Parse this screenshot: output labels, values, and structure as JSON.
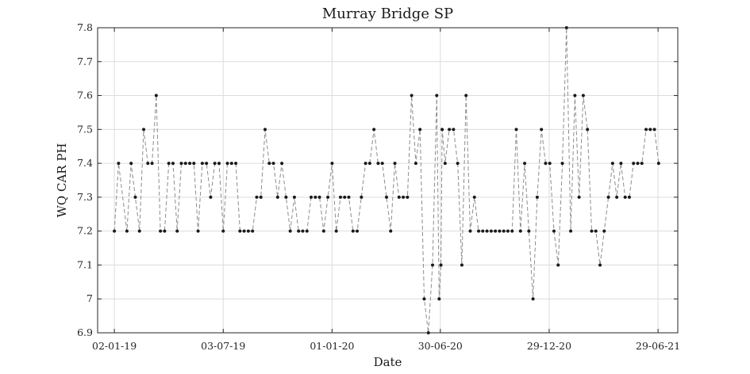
{
  "chart_data": {
    "type": "line",
    "title": "Murray Bridge SP",
    "xlabel": "Date",
    "ylabel": "WQ CAR PH",
    "ylim": [
      6.9,
      7.8
    ],
    "yticks": [
      6.9,
      7.0,
      7.1,
      7.2,
      7.3,
      7.4,
      7.5,
      7.6,
      7.7,
      7.8
    ],
    "ytick_labels": [
      "6.9",
      "7",
      "7.1",
      "7.2",
      "7.3",
      "7.4",
      "7.5",
      "7.6",
      "7.7",
      "7.8"
    ],
    "xlim": [
      "2018-12-05",
      "2021-08-01"
    ],
    "xticks": [
      "2019-01-02",
      "2019-07-03",
      "2020-01-01",
      "2020-06-30",
      "2020-12-29",
      "2021-06-29"
    ],
    "xtick_labels": [
      "02-01-19",
      "03-07-19",
      "01-01-20",
      "30-06-20",
      "29-12-20",
      "29-06-21"
    ],
    "grid": true,
    "line_style": "dashed",
    "line_color": "#8c8c8c",
    "marker_color": "#1a1a1a",
    "series": [
      {
        "x": [
          "2019-01-02",
          "2019-01-09",
          "2019-01-23",
          "2019-01-30",
          "2019-02-06",
          "2019-02-13",
          "2019-02-20",
          "2019-02-27",
          "2019-03-06",
          "2019-03-13",
          "2019-03-20",
          "2019-03-27",
          "2019-04-03",
          "2019-04-10",
          "2019-04-17",
          "2019-04-24",
          "2019-05-01",
          "2019-05-08",
          "2019-05-15",
          "2019-05-22",
          "2019-05-29",
          "2019-06-05",
          "2019-06-12",
          "2019-06-19",
          "2019-06-26",
          "2019-07-03",
          "2019-07-10",
          "2019-07-17",
          "2019-07-24",
          "2019-07-31",
          "2019-08-07",
          "2019-08-14",
          "2019-08-21",
          "2019-08-28",
          "2019-09-04",
          "2019-09-11",
          "2019-09-18",
          "2019-09-25",
          "2019-10-02",
          "2019-10-09",
          "2019-10-16",
          "2019-10-23",
          "2019-10-30",
          "2019-11-06",
          "2019-11-13",
          "2019-11-20",
          "2019-11-27",
          "2019-12-04",
          "2019-12-11",
          "2019-12-18",
          "2019-12-25",
          "2020-01-01",
          "2020-01-08",
          "2020-01-15",
          "2020-01-22",
          "2020-01-29",
          "2020-02-05",
          "2020-02-12",
          "2020-02-19",
          "2020-02-26",
          "2020-03-04",
          "2020-03-11",
          "2020-03-18",
          "2020-03-25",
          "2020-04-01",
          "2020-04-08",
          "2020-04-15",
          "2020-04-22",
          "2020-04-29",
          "2020-05-06",
          "2020-05-13",
          "2020-05-20",
          "2020-05-27",
          "2020-06-03",
          "2020-06-10",
          "2020-06-17",
          "2020-06-24",
          "2020-06-28",
          "2020-07-01",
          "2020-07-03",
          "2020-07-08",
          "2020-07-15",
          "2020-07-22",
          "2020-07-29",
          "2020-08-05",
          "2020-08-12",
          "2020-08-19",
          "2020-08-26",
          "2020-09-02",
          "2020-09-09",
          "2020-09-16",
          "2020-09-23",
          "2020-09-30",
          "2020-10-07",
          "2020-10-14",
          "2020-10-21",
          "2020-10-28",
          "2020-11-04",
          "2020-11-11",
          "2020-11-18",
          "2020-11-25",
          "2020-12-02",
          "2020-12-09",
          "2020-12-16",
          "2020-12-23",
          "2020-12-30",
          "2021-01-06",
          "2021-01-13",
          "2021-01-20",
          "2021-01-27",
          "2021-02-03",
          "2021-02-10",
          "2021-02-17",
          "2021-02-24",
          "2021-03-03",
          "2021-03-10",
          "2021-03-17",
          "2021-03-24",
          "2021-03-31",
          "2021-04-07",
          "2021-04-14",
          "2021-04-21",
          "2021-04-28",
          "2021-05-05",
          "2021-05-12",
          "2021-05-19",
          "2021-05-26",
          "2021-06-02",
          "2021-06-09",
          "2021-06-16",
          "2021-06-23",
          "2021-06-30"
        ],
        "y": [
          7.2,
          7.4,
          7.2,
          7.4,
          7.3,
          7.2,
          7.5,
          7.4,
          7.4,
          7.6,
          7.2,
          7.2,
          7.4,
          7.4,
          7.2,
          7.4,
          7.4,
          7.4,
          7.4,
          7.2,
          7.4,
          7.4,
          7.3,
          7.4,
          7.4,
          7.2,
          7.4,
          7.4,
          7.4,
          7.2,
          7.2,
          7.2,
          7.2,
          7.3,
          7.3,
          7.5,
          7.4,
          7.4,
          7.3,
          7.4,
          7.3,
          7.2,
          7.3,
          7.2,
          7.2,
          7.2,
          7.3,
          7.3,
          7.3,
          7.2,
          7.3,
          7.4,
          7.2,
          7.3,
          7.3,
          7.3,
          7.2,
          7.2,
          7.3,
          7.4,
          7.4,
          7.5,
          7.4,
          7.4,
          7.3,
          7.2,
          7.4,
          7.3,
          7.3,
          7.3,
          7.6,
          7.4,
          7.5,
          7.0,
          6.9,
          7.1,
          7.6,
          7.0,
          7.1,
          7.5,
          7.4,
          7.5,
          7.5,
          7.4,
          7.1,
          7.6,
          7.2,
          7.3,
          7.2,
          7.2,
          7.2,
          7.2,
          7.2,
          7.2,
          7.2,
          7.2,
          7.2,
          7.5,
          7.2,
          7.4,
          7.2,
          7.0,
          7.3,
          7.5,
          7.4,
          7.4,
          7.2,
          7.1,
          7.4,
          7.8,
          7.2,
          7.6,
          7.3,
          7.6,
          7.5,
          7.2,
          7.2,
          7.1,
          7.2,
          7.3,
          7.4,
          7.3,
          7.4,
          7.3,
          7.3,
          7.4,
          7.4,
          7.4,
          7.5,
          7.5,
          7.5,
          7.4
        ]
      }
    ]
  }
}
